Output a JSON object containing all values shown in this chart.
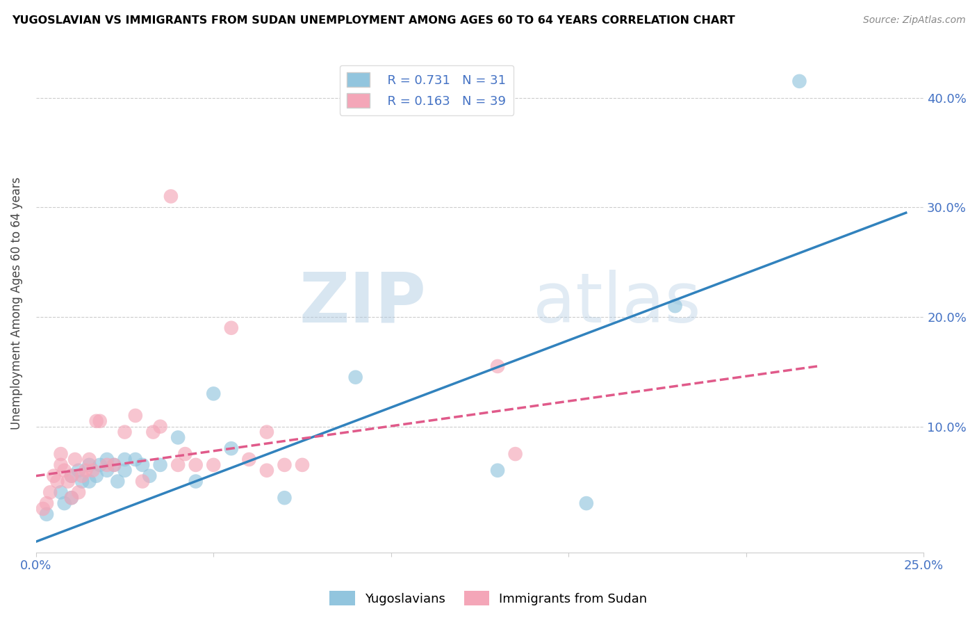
{
  "title": "YUGOSLAVIAN VS IMMIGRANTS FROM SUDAN UNEMPLOYMENT AMONG AGES 60 TO 64 YEARS CORRELATION CHART",
  "source": "Source: ZipAtlas.com",
  "ylabel": "Unemployment Among Ages 60 to 64 years",
  "xlim": [
    0.0,
    0.25
  ],
  "ylim": [
    -0.015,
    0.44
  ],
  "xticks": [
    0.0,
    0.05,
    0.1,
    0.15,
    0.2,
    0.25
  ],
  "ytick_positions": [
    0.0,
    0.1,
    0.2,
    0.3,
    0.4
  ],
  "ytick_labels": [
    "",
    "10.0%",
    "20.0%",
    "30.0%",
    "40.0%"
  ],
  "xtick_labels": [
    "0.0%",
    "",
    "",
    "",
    "",
    "25.0%"
  ],
  "blue_color": "#92c5de",
  "pink_color": "#f4a6b8",
  "blue_line_color": "#3182bd",
  "pink_line_color": "#e05a8a",
  "legend_R_blue": "R = 0.731",
  "legend_N_blue": "N = 31",
  "legend_R_pink": "R = 0.163",
  "legend_N_pink": "N = 39",
  "watermark_zip": "ZIP",
  "watermark_atlas": "atlas",
  "blue_scatter_x": [
    0.003,
    0.007,
    0.008,
    0.01,
    0.01,
    0.012,
    0.013,
    0.015,
    0.015,
    0.017,
    0.018,
    0.02,
    0.02,
    0.022,
    0.023,
    0.025,
    0.025,
    0.028,
    0.03,
    0.032,
    0.035,
    0.04,
    0.045,
    0.05,
    0.055,
    0.07,
    0.09,
    0.13,
    0.155,
    0.18,
    0.215
  ],
  "blue_scatter_y": [
    0.02,
    0.04,
    0.03,
    0.055,
    0.035,
    0.06,
    0.05,
    0.065,
    0.05,
    0.055,
    0.065,
    0.06,
    0.07,
    0.065,
    0.05,
    0.06,
    0.07,
    0.07,
    0.065,
    0.055,
    0.065,
    0.09,
    0.05,
    0.13,
    0.08,
    0.035,
    0.145,
    0.06,
    0.03,
    0.21,
    0.415
  ],
  "pink_scatter_x": [
    0.002,
    0.003,
    0.004,
    0.005,
    0.006,
    0.007,
    0.007,
    0.008,
    0.009,
    0.01,
    0.01,
    0.011,
    0.012,
    0.013,
    0.014,
    0.015,
    0.016,
    0.017,
    0.018,
    0.02,
    0.022,
    0.025,
    0.028,
    0.03,
    0.033,
    0.035,
    0.038,
    0.04,
    0.042,
    0.045,
    0.05,
    0.055,
    0.06,
    0.065,
    0.065,
    0.07,
    0.075,
    0.13,
    0.135
  ],
  "pink_scatter_y": [
    0.025,
    0.03,
    0.04,
    0.055,
    0.05,
    0.065,
    0.075,
    0.06,
    0.05,
    0.035,
    0.055,
    0.07,
    0.04,
    0.055,
    0.06,
    0.07,
    0.06,
    0.105,
    0.105,
    0.065,
    0.065,
    0.095,
    0.11,
    0.05,
    0.095,
    0.1,
    0.31,
    0.065,
    0.075,
    0.065,
    0.065,
    0.19,
    0.07,
    0.06,
    0.095,
    0.065,
    0.065,
    0.155,
    0.075
  ],
  "blue_trend_x": [
    0.0,
    0.245
  ],
  "blue_trend_y": [
    -0.005,
    0.295
  ],
  "pink_trend_x": [
    0.0,
    0.22
  ],
  "pink_trend_y": [
    0.055,
    0.155
  ]
}
